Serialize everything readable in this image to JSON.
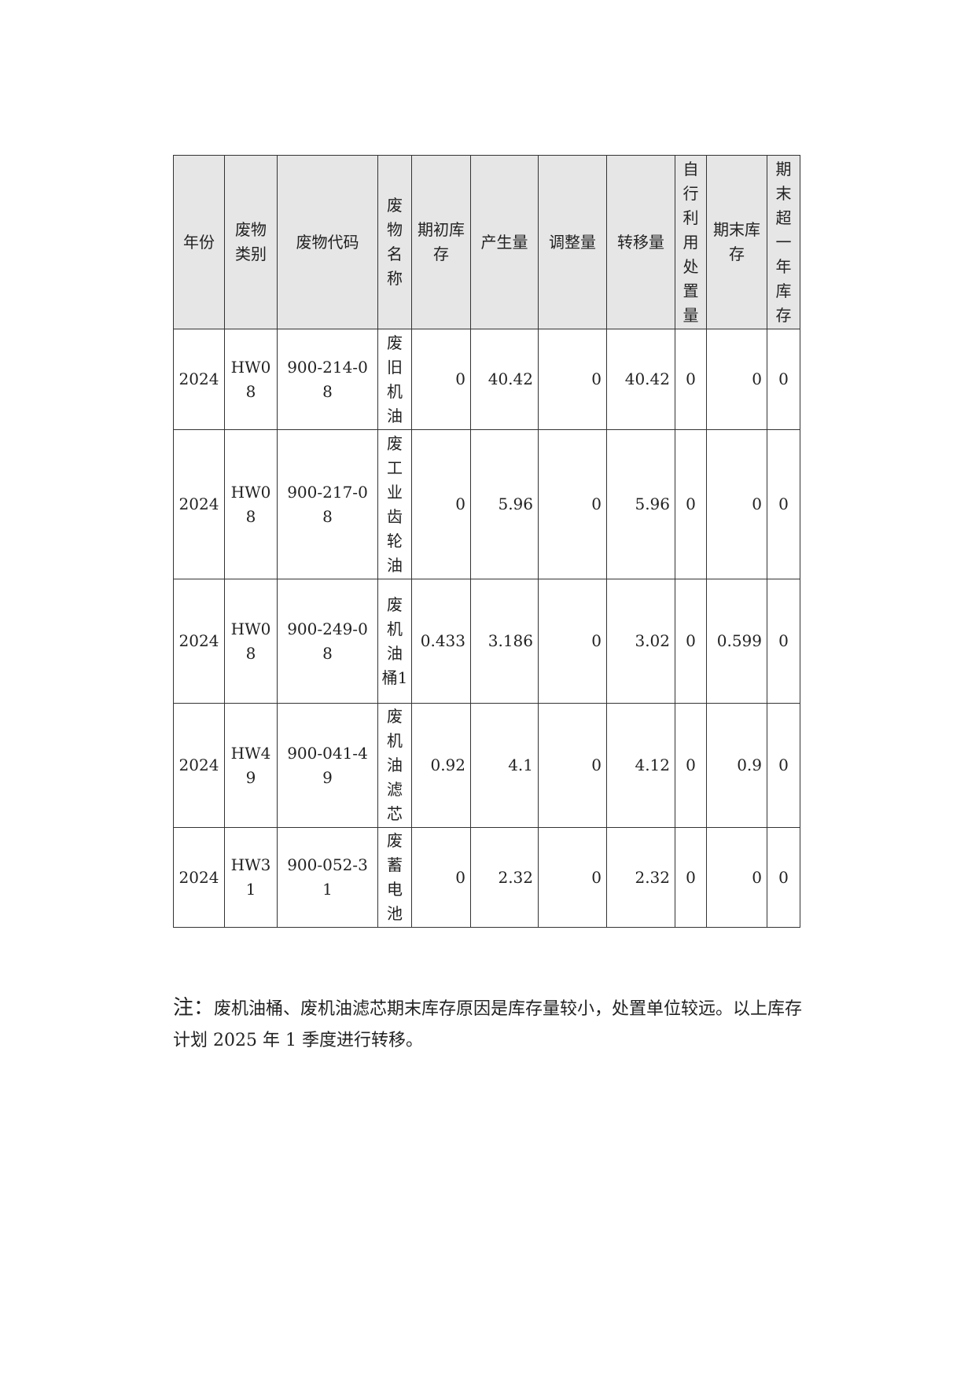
{
  "table": {
    "headers": [
      "年份",
      "废物类别",
      "废物代码",
      "废物名称",
      "期初库存",
      "产生量",
      "调整量",
      "转移量",
      "自行利用处置量",
      "期末库存",
      "期末超一年库存"
    ],
    "rows": [
      [
        "2024",
        "HW08",
        "900-214-08",
        "废旧机油",
        "0",
        "40.42",
        "0",
        "40.42",
        "0",
        "0",
        "0"
      ],
      [
        "2024",
        "HW08",
        "900-217-08",
        "废工业齿轮油",
        "0",
        "5.96",
        "0",
        "5.96",
        "0",
        "0",
        "0"
      ],
      [
        "2024",
        "HW08",
        "900-249-08",
        "废机油桶1",
        "0.433",
        "3.186",
        "0",
        "3.02",
        "0",
        "0.599",
        "0"
      ],
      [
        "2024",
        "HW49",
        "900-041-49",
        "废机油滤芯",
        "0.92",
        "4.1",
        "0",
        "4.12",
        "0",
        "0.9",
        "0"
      ],
      [
        "2024",
        "HW31",
        "900-052-31",
        "废蓄电池",
        "0",
        "2.32",
        "0",
        "2.32",
        "0",
        "0",
        "0"
      ]
    ]
  },
  "note": {
    "label": "注：",
    "text": "废机油桶、废机油滤芯期末库存原因是库存量较小，处置单位较远。以上库存计划 2025 年 1 季度进行转移。"
  }
}
